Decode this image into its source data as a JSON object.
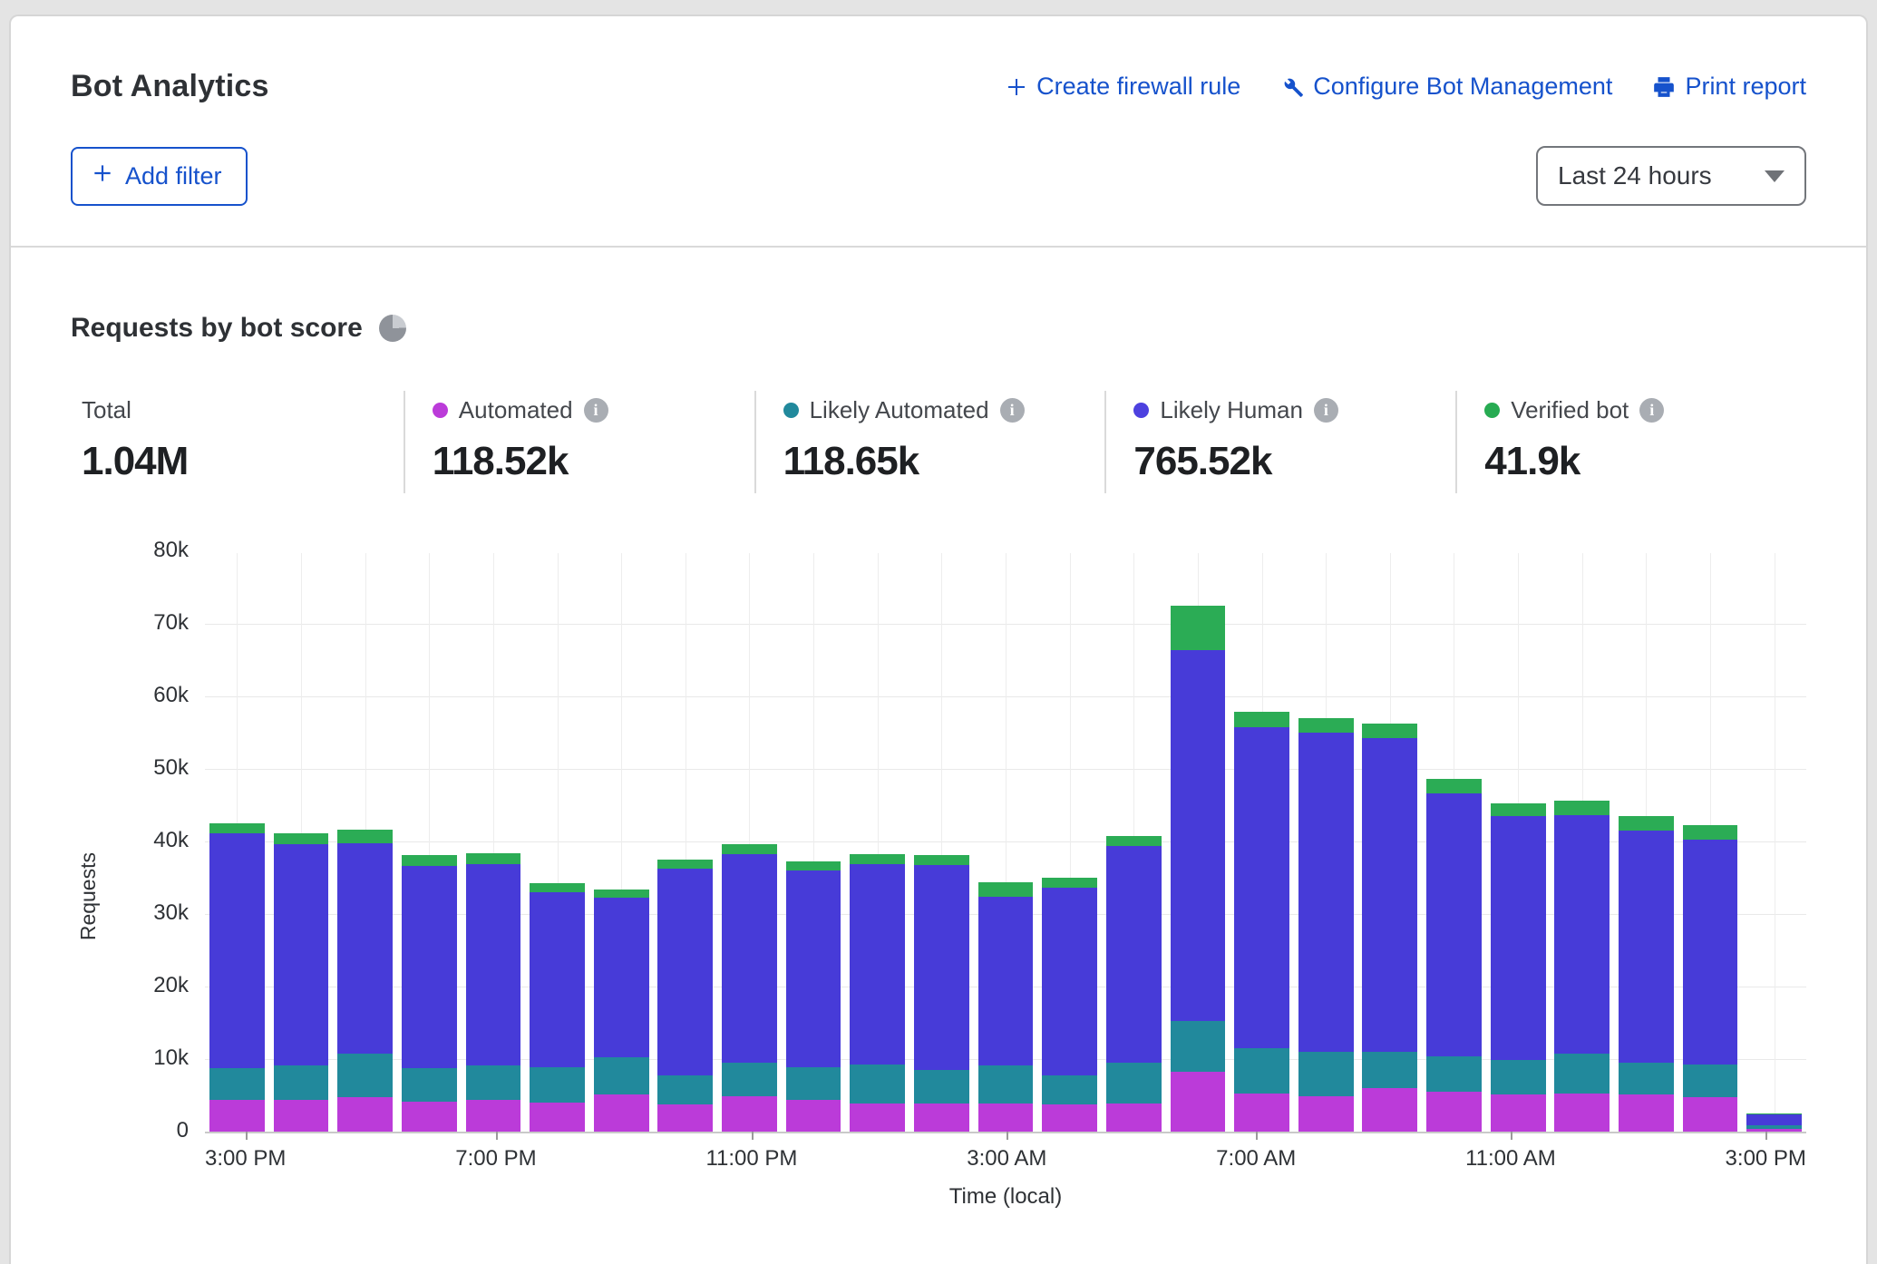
{
  "header": {
    "title": "Bot Analytics",
    "links": [
      {
        "label": "Create firewall rule",
        "icon": "plus-icon"
      },
      {
        "label": "Configure Bot Management",
        "icon": "wrench-icon"
      },
      {
        "label": "Print report",
        "icon": "printer-icon"
      }
    ],
    "add_filter_label": "Add filter",
    "time_range_value": "Last 24 hours"
  },
  "section": {
    "heading": "Requests by bot score",
    "stats": [
      {
        "label": "Total",
        "value": "1.04M",
        "dot": null,
        "info": false
      },
      {
        "label": "Automated",
        "value": "118.52k",
        "dot": "#bb3bd9",
        "info": true
      },
      {
        "label": "Likely Automated",
        "value": "118.65k",
        "dot": "#21899c",
        "info": true
      },
      {
        "label": "Likely Human",
        "value": "765.52k",
        "dot": "#4d41df",
        "info": true
      },
      {
        "label": "Verified bot",
        "value": "41.9k",
        "dot": "#27ab52",
        "info": true
      }
    ]
  },
  "colors": {
    "link_blue": "#1652cc",
    "automated": "#bb3bd9",
    "likely_automated": "#21899c",
    "likely_human": "#473bd8",
    "verified_bot": "#2bac55"
  },
  "chart_data": {
    "type": "bar",
    "stacked": true,
    "title": "Requests by bot score",
    "xlabel": "Time (local)",
    "ylabel": "Requests",
    "ylim": [
      0,
      80000
    ],
    "y_tick_labels": [
      "0",
      "10k",
      "20k",
      "30k",
      "40k",
      "50k",
      "60k",
      "70k",
      "80k"
    ],
    "grid": true,
    "categories": [
      "3:00 PM",
      "4:00 PM",
      "5:00 PM",
      "6:00 PM",
      "7:00 PM",
      "8:00 PM",
      "9:00 PM",
      "10:00 PM",
      "11:00 PM",
      "12:00 AM",
      "1:00 AM",
      "2:00 AM",
      "3:00 AM",
      "4:00 AM",
      "5:00 AM",
      "6:00 AM",
      "7:00 AM",
      "8:00 AM",
      "9:00 AM",
      "10:00 AM",
      "11:00 AM",
      "12:00 PM",
      "1:00 PM",
      "2:00 PM",
      "3:00 PM"
    ],
    "x_tick_indices": [
      0,
      4,
      8,
      12,
      16,
      20,
      24
    ],
    "series": [
      {
        "name": "Automated",
        "color": "#bb3bd9",
        "values": [
          4400,
          4400,
          4700,
          4100,
          4400,
          4000,
          5100,
          3700,
          4900,
          4400,
          3900,
          3900,
          3900,
          3700,
          3900,
          8200,
          5300,
          4900,
          6000,
          5500,
          5100,
          5300,
          5100,
          4800,
          400
        ]
      },
      {
        "name": "Likely Automated",
        "color": "#21899c",
        "values": [
          4400,
          4700,
          6100,
          4700,
          4700,
          4900,
          5200,
          4100,
          4600,
          4500,
          5300,
          4600,
          5200,
          4100,
          5600,
          7100,
          6200,
          6100,
          5000,
          4900,
          4800,
          5500,
          4400,
          4500,
          500
        ]
      },
      {
        "name": "Likely Human",
        "color": "#473bd8",
        "values": [
          32300,
          30500,
          29000,
          27800,
          27800,
          24100,
          21900,
          28400,
          28700,
          27100,
          27700,
          28300,
          23300,
          25800,
          29900,
          51100,
          44300,
          44000,
          43300,
          36200,
          33600,
          32800,
          32000,
          30900,
          1500
        ]
      },
      {
        "name": "Verified bot",
        "color": "#2bac55",
        "values": [
          1400,
          1500,
          1800,
          1500,
          1500,
          1200,
          1200,
          1300,
          1400,
          1300,
          1400,
          1300,
          2000,
          1400,
          1400,
          6100,
          2100,
          2000,
          2000,
          2000,
          1800,
          2000,
          2000,
          2000,
          150
        ]
      }
    ]
  }
}
